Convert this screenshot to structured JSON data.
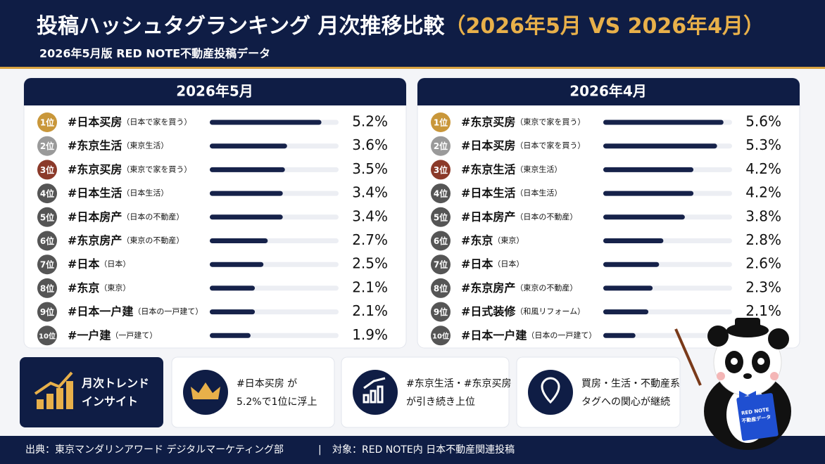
{
  "header": {
    "title": "投稿ハッシュタグランキング 月次推移比較",
    "title_period": "（2026年5月 VS 2026年4月）",
    "subtitle": "2026年5月版 RED NOTE不動産投稿データ"
  },
  "rankings": [
    {
      "heading": "2026年5月",
      "xlim": [
        0,
        6
      ],
      "rows": [
        {
          "rank": "1位",
          "tag": "#日本买房",
          "note": "（日本で家を買う）",
          "value": 5.2,
          "value_label": "5.2%"
        },
        {
          "rank": "2位",
          "tag": "#东京生活",
          "note": "（東京生活）",
          "value": 3.6,
          "value_label": "3.6%"
        },
        {
          "rank": "3位",
          "tag": "#东京买房",
          "note": "（東京で家を買う）",
          "value": 3.5,
          "value_label": "3.5%"
        },
        {
          "rank": "4位",
          "tag": "#日本生活",
          "note": "（日本生活）",
          "value": 3.4,
          "value_label": "3.4%"
        },
        {
          "rank": "5位",
          "tag": "#日本房产",
          "note": "（日本の不動産）",
          "value": 3.4,
          "value_label": "3.4%"
        },
        {
          "rank": "6位",
          "tag": "#东京房产",
          "note": "（東京の不動産）",
          "value": 2.7,
          "value_label": "2.7%"
        },
        {
          "rank": "7位",
          "tag": "#日本",
          "note": "（日本）",
          "value": 2.5,
          "value_label": "2.5%"
        },
        {
          "rank": "8位",
          "tag": "#东京",
          "note": "（東京）",
          "value": 2.1,
          "value_label": "2.1%"
        },
        {
          "rank": "9位",
          "tag": "#日本一户建",
          "note": "（日本の一戸建て）",
          "value": 2.1,
          "value_label": "2.1%"
        },
        {
          "rank": "10位",
          "tag": "#一户建",
          "note": "（一戸建て）",
          "value": 1.9,
          "value_label": "1.9%"
        }
      ]
    },
    {
      "heading": "2026年4月",
      "xlim": [
        0,
        6
      ],
      "rows": [
        {
          "rank": "1位",
          "tag": "#东京买房",
          "note": "（東京で家を買う）",
          "value": 5.6,
          "value_label": "5.6%"
        },
        {
          "rank": "2位",
          "tag": "#日本买房",
          "note": "（日本で家を買う）",
          "value": 5.3,
          "value_label": "5.3%"
        },
        {
          "rank": "3位",
          "tag": "#东京生活",
          "note": "（東京生活）",
          "value": 4.2,
          "value_label": "4.2%"
        },
        {
          "rank": "4位",
          "tag": "#日本生活",
          "note": "（日本生活）",
          "value": 4.2,
          "value_label": "4.2%"
        },
        {
          "rank": "5位",
          "tag": "#日本房产",
          "note": "（日本の不動産）",
          "value": 3.8,
          "value_label": "3.8%"
        },
        {
          "rank": "6位",
          "tag": "#东京",
          "note": "（東京）",
          "value": 2.8,
          "value_label": "2.8%"
        },
        {
          "rank": "7位",
          "tag": "#日本",
          "note": "（日本）",
          "value": 2.6,
          "value_label": "2.6%"
        },
        {
          "rank": "8位",
          "tag": "#东京房产",
          "note": "（東京の不動産）",
          "value": 2.3,
          "value_label": "2.3%"
        },
        {
          "rank": "9位",
          "tag": "#日式装修",
          "note": "（和風リフォーム）",
          "value": 2.1,
          "value_label": "2.1%"
        },
        {
          "rank": "10位",
          "tag": "#日本一户建",
          "note": "（日本の一戸建て）",
          "value": 1.5
        }
      ]
    }
  ],
  "insights": [
    {
      "lines": [
        "月次トレンド",
        "インサイト"
      ]
    },
    {
      "lines": [
        "#日本买房 が",
        "5.2%で1位に浮上"
      ]
    },
    {
      "lines": [
        "#东京生活・#东京买房",
        "が引き続き上位"
      ]
    },
    {
      "lines": [
        "買房・生活・不動産系",
        "タグへの関心が継続"
      ]
    }
  ],
  "mascot": {
    "book_text": [
      "RED NOTE",
      "不動産データ"
    ]
  },
  "footer": {
    "source": "出典：東京マンダリンアワード デジタルマーケティング部",
    "separator": "|",
    "target": "対象：RED NOTE内 日本不動産関連投稿"
  }
}
